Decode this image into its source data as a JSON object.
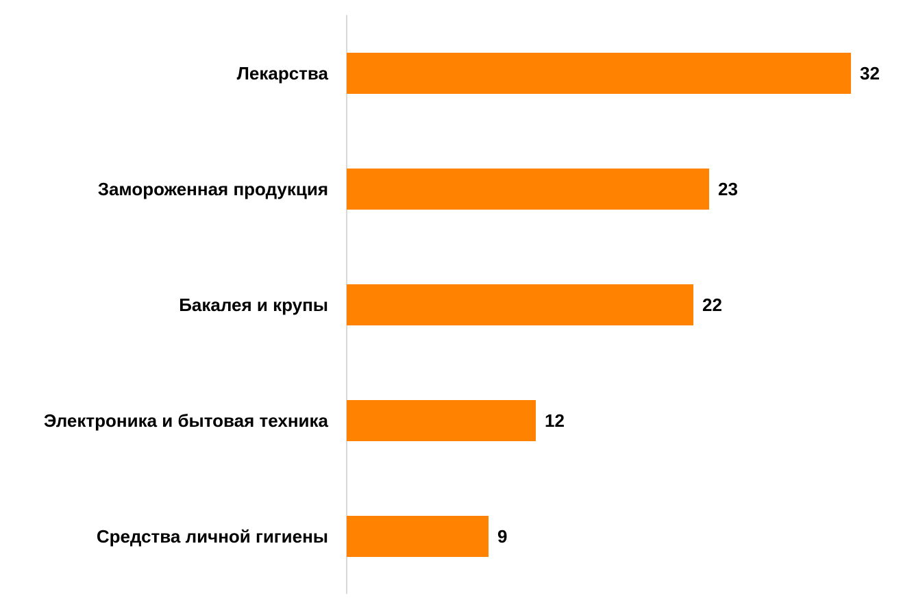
{
  "chart_data": {
    "type": "bar",
    "orientation": "horizontal",
    "categories": [
      "Лекарства",
      "Замороженная продукция",
      "Бакалея и крупы",
      "Электроника и бытовая техника",
      "Средства личной гигиены"
    ],
    "values": [
      32,
      23,
      22,
      12,
      9
    ],
    "xlim": [
      0,
      35
    ],
    "bar_color": "#FF8300",
    "grid": false,
    "legend": "none"
  }
}
